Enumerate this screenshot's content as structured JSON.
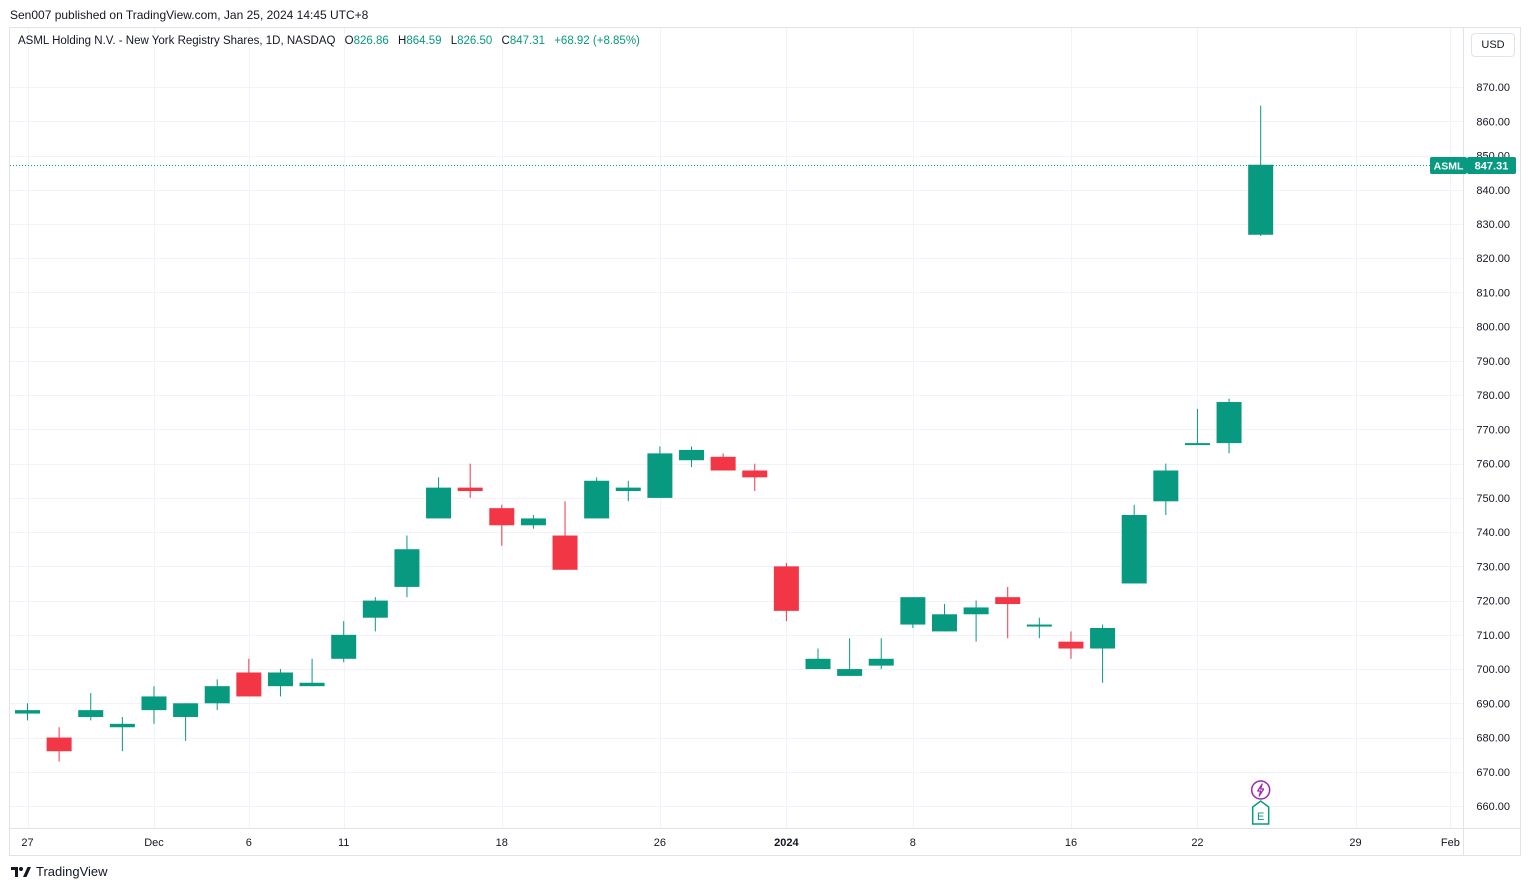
{
  "header": {
    "published": "Sen007 published on TradingView.com, Jan 25, 2024 14:45 UTC+8"
  },
  "legend": {
    "name": "ASML Holding N.V. - New York Registry Shares, 1D, NASDAQ",
    "o_label": "O",
    "o_value": "826.86",
    "h_label": "H",
    "h_value": "864.59",
    "l_label": "L",
    "l_value": "826.50",
    "c_label": "C",
    "c_value": "847.31",
    "change": "+68.92 (+8.85%)"
  },
  "currency_button": "USD",
  "price_tag": {
    "symbol": "ASML",
    "value": "847.31",
    "price": 847.31
  },
  "footer": {
    "brand": "TradingView"
  },
  "markers": {
    "earnings_label": "E"
  },
  "colors": {
    "up": "#089981",
    "down": "#f23645",
    "grid": "#f0f3fa",
    "text": "#131722",
    "earnings": "#9c27b0"
  },
  "chart_data": {
    "type": "candlestick",
    "title": "ASML Holding N.V. - New York Registry Shares, 1D, NASDAQ",
    "y_ticks": [
      870,
      860,
      850,
      840,
      830,
      820,
      810,
      800,
      790,
      780,
      770,
      760,
      750,
      740,
      730,
      720,
      710,
      700,
      690,
      680,
      670,
      660
    ],
    "x_ticks": [
      {
        "label": "27",
        "i": 0
      },
      {
        "label": "Dec",
        "i": 4
      },
      {
        "label": "6",
        "i": 7
      },
      {
        "label": "11",
        "i": 10
      },
      {
        "label": "18",
        "i": 15
      },
      {
        "label": "26",
        "i": 20
      },
      {
        "label": "2024",
        "i": 24
      },
      {
        "label": "8",
        "i": 28
      },
      {
        "label": "16",
        "i": 33
      },
      {
        "label": "22",
        "i": 37
      },
      {
        "label": "29",
        "i": 42
      },
      {
        "label": "Feb",
        "i": 45
      }
    ],
    "candles": [
      {
        "date": "2023-11-27",
        "o": 687,
        "h": 690,
        "l": 685,
        "c": 688
      },
      {
        "date": "2023-11-28",
        "o": 680,
        "h": 683,
        "l": 673,
        "c": 676
      },
      {
        "date": "2023-11-29",
        "o": 686,
        "h": 693,
        "l": 685,
        "c": 688
      },
      {
        "date": "2023-11-30",
        "o": 683,
        "h": 686,
        "l": 676,
        "c": 684
      },
      {
        "date": "2023-12-01",
        "o": 688,
        "h": 695,
        "l": 684,
        "c": 692
      },
      {
        "date": "2023-12-04",
        "o": 686,
        "h": 690,
        "l": 679,
        "c": 690
      },
      {
        "date": "2023-12-05",
        "o": 690,
        "h": 697,
        "l": 688,
        "c": 695
      },
      {
        "date": "2023-12-06",
        "o": 699,
        "h": 703,
        "l": 692,
        "c": 692
      },
      {
        "date": "2023-12-07",
        "o": 695,
        "h": 700,
        "l": 692,
        "c": 699
      },
      {
        "date": "2023-12-08",
        "o": 695,
        "h": 703,
        "l": 695,
        "c": 696
      },
      {
        "date": "2023-12-11",
        "o": 703,
        "h": 714,
        "l": 702,
        "c": 710
      },
      {
        "date": "2023-12-12",
        "o": 715,
        "h": 721,
        "l": 711,
        "c": 720
      },
      {
        "date": "2023-12-13",
        "o": 724,
        "h": 739,
        "l": 721,
        "c": 735
      },
      {
        "date": "2023-12-14",
        "o": 744,
        "h": 756,
        "l": 744,
        "c": 753
      },
      {
        "date": "2023-12-15",
        "o": 753,
        "h": 760,
        "l": 750,
        "c": 752
      },
      {
        "date": "2023-12-18",
        "o": 747,
        "h": 748,
        "l": 736,
        "c": 742
      },
      {
        "date": "2023-12-19",
        "o": 742,
        "h": 745,
        "l": 741,
        "c": 744
      },
      {
        "date": "2023-12-20",
        "o": 739,
        "h": 749,
        "l": 729,
        "c": 729
      },
      {
        "date": "2023-12-21",
        "o": 744,
        "h": 756,
        "l": 744,
        "c": 755
      },
      {
        "date": "2023-12-22",
        "o": 752,
        "h": 755,
        "l": 749,
        "c": 753
      },
      {
        "date": "2023-12-26",
        "o": 750,
        "h": 765,
        "l": 750,
        "c": 763
      },
      {
        "date": "2023-12-27",
        "o": 761,
        "h": 765,
        "l": 759,
        "c": 764
      },
      {
        "date": "2023-12-28",
        "o": 762,
        "h": 763,
        "l": 758,
        "c": 758
      },
      {
        "date": "2023-12-29",
        "o": 758,
        "h": 760,
        "l": 752,
        "c": 756
      },
      {
        "date": "2024-01-02",
        "o": 730,
        "h": 731,
        "l": 714,
        "c": 717
      },
      {
        "date": "2024-01-03",
        "o": 700,
        "h": 706,
        "l": 700,
        "c": 703
      },
      {
        "date": "2024-01-04",
        "o": 698,
        "h": 709,
        "l": 698,
        "c": 700
      },
      {
        "date": "2024-01-05",
        "o": 701,
        "h": 709,
        "l": 700,
        "c": 703
      },
      {
        "date": "2024-01-08",
        "o": 713,
        "h": 721,
        "l": 712,
        "c": 721
      },
      {
        "date": "2024-01-09",
        "o": 711,
        "h": 719,
        "l": 711,
        "c": 716
      },
      {
        "date": "2024-01-10",
        "o": 716,
        "h": 720,
        "l": 708,
        "c": 718
      },
      {
        "date": "2024-01-11",
        "o": 721,
        "h": 724,
        "l": 709,
        "c": 719
      },
      {
        "date": "2024-01-12",
        "o": 713,
        "h": 715,
        "l": 709,
        "c": 713
      },
      {
        "date": "2024-01-16",
        "o": 708,
        "h": 711,
        "l": 703,
        "c": 706
      },
      {
        "date": "2024-01-17",
        "o": 706,
        "h": 713,
        "l": 696,
        "c": 712
      },
      {
        "date": "2024-01-18",
        "o": 725,
        "h": 748,
        "l": 725,
        "c": 745
      },
      {
        "date": "2024-01-19",
        "o": 749,
        "h": 760,
        "l": 745,
        "c": 758
      },
      {
        "date": "2024-01-22",
        "o": 766,
        "h": 776,
        "l": 766,
        "c": 766
      },
      {
        "date": "2024-01-23",
        "o": 766,
        "h": 779,
        "l": 763,
        "c": 778
      },
      {
        "date": "2024-01-24",
        "o": 826.86,
        "h": 864.59,
        "l": 826.5,
        "c": 847.31
      }
    ]
  }
}
